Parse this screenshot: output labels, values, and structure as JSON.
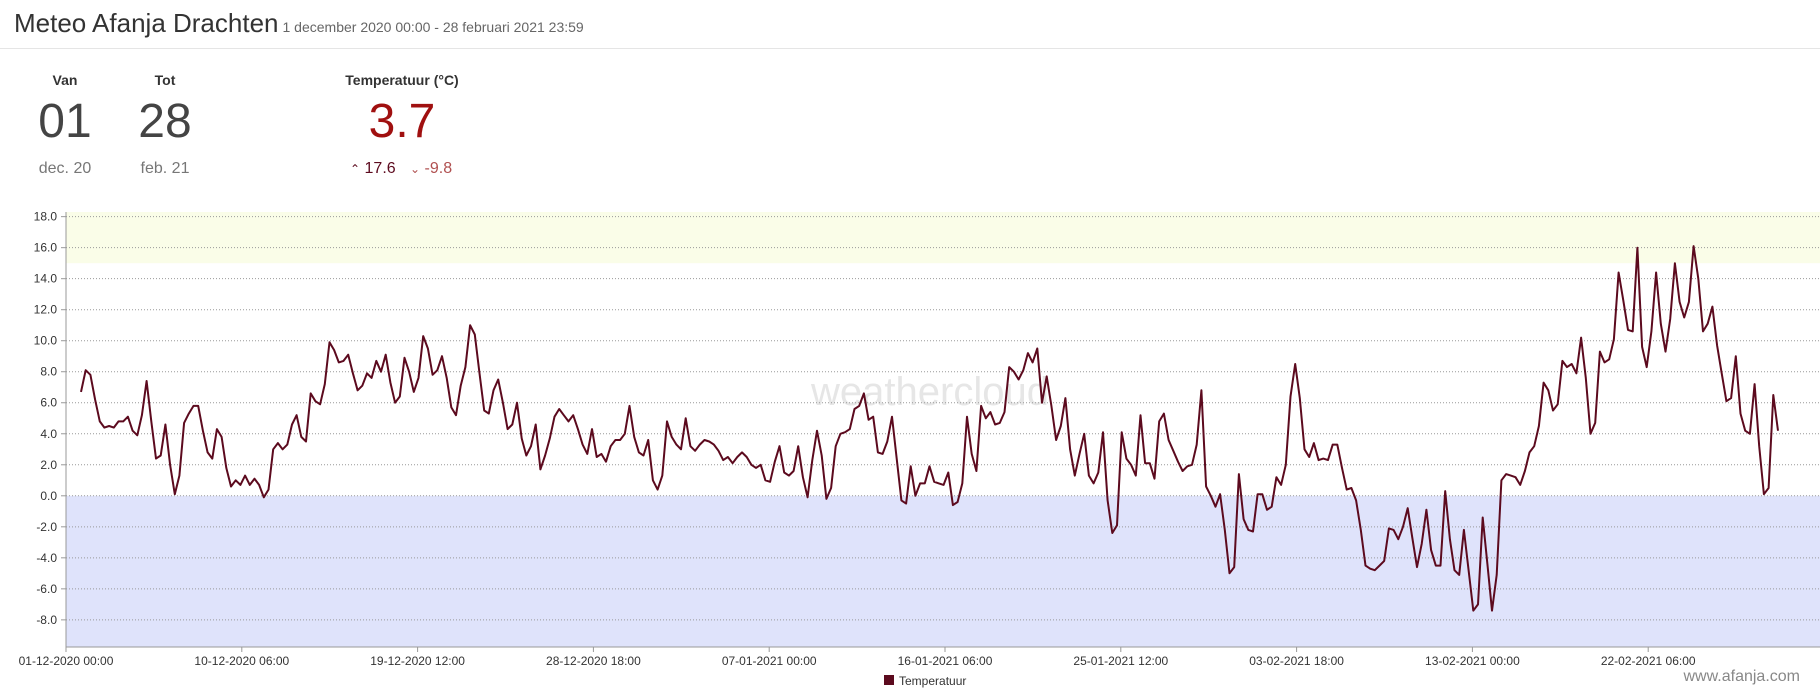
{
  "header": {
    "title": "Meteo Afanja Drachten",
    "subtitle": "1 december 2020 00:00 - 28 februari 2021 23:59"
  },
  "stats": {
    "from": {
      "label": "Van",
      "day": "01",
      "month": "dec. 20"
    },
    "to": {
      "label": "Tot",
      "day": "28",
      "month": "feb. 21"
    },
    "temperature": {
      "label": "Temperatuur (°C)",
      "average": 3.7,
      "max": 17.6,
      "min": -9.8
    }
  },
  "watermarks": [
    "weathercloud",
    "www.afanja.com"
  ],
  "chart_data": {
    "type": "line",
    "ylim": [
      -9.75,
      18.3
    ],
    "yticks": [
      {
        "value": -8,
        "label": "-8.0"
      },
      {
        "value": -6,
        "label": "-6.0"
      },
      {
        "value": -4,
        "label": "-4.0"
      },
      {
        "value": -2,
        "label": "-2.0"
      },
      {
        "value": 0,
        "label": "0.0"
      },
      {
        "value": 2,
        "label": "2.0"
      },
      {
        "value": 4,
        "label": "4.0"
      },
      {
        "value": 6,
        "label": "6.0"
      },
      {
        "value": 8,
        "label": "8.0"
      },
      {
        "value": 10,
        "label": "10.0"
      },
      {
        "value": 12,
        "label": "12.0"
      },
      {
        "value": 14,
        "label": "14.0"
      },
      {
        "value": 16,
        "label": "16.0"
      },
      {
        "value": 18,
        "label": "18.0"
      }
    ],
    "xticks": [
      "01-12-2020 00:00",
      "10-12-2020 06:00",
      "19-12-2020 12:00",
      "28-12-2020 18:00",
      "07-01-2021 00:00",
      "16-01-2021 06:00",
      "25-01-2021 12:00",
      "03-02-2021 18:00",
      "13-02-2021 00:00",
      "22-02-2021 06:00"
    ],
    "grid": true,
    "legend": "bottom",
    "bands": [
      {
        "from": 15,
        "to": 18.3,
        "color": "#fafde8"
      },
      {
        "from": -9.75,
        "to": 0,
        "color": "#dfe3fb"
      }
    ],
    "series": [
      {
        "name": "Temperatuur",
        "color": "#5c0a1e",
        "values": [
          6.7,
          8.1,
          7.8,
          6.2,
          4.8,
          4.4,
          4.5,
          4.4,
          4.8,
          4.8,
          5.1,
          4.2,
          3.9,
          5.2,
          7.4,
          4.8,
          2.4,
          2.6,
          4.6,
          2.0,
          0.1,
          1.3,
          4.7,
          5.3,
          5.8,
          5.8,
          4.2,
          2.8,
          2.4,
          4.3,
          3.8,
          1.8,
          0.6,
          1.0,
          0.7,
          1.3,
          0.7,
          1.1,
          0.7,
          -0.1,
          0.4,
          3.0,
          3.4,
          3.0,
          3.3,
          4.6,
          5.2,
          3.8,
          3.5,
          6.6,
          6.1,
          5.9,
          7.2,
          9.9,
          9.4,
          8.6,
          8.7,
          9.1,
          7.9,
          6.8,
          7.1,
          7.9,
          7.6,
          8.7,
          8.0,
          9.1,
          7.3,
          6.0,
          6.4,
          8.9,
          8.0,
          6.7,
          7.6,
          10.3,
          9.5,
          7.8,
          8.1,
          9.0,
          7.6,
          5.7,
          5.2,
          7.1,
          8.3,
          11.0,
          10.4,
          7.9,
          5.5,
          5.3,
          6.8,
          7.5,
          6.0,
          4.3,
          4.6,
          6.0,
          3.7,
          2.6,
          3.2,
          4.6,
          1.7,
          2.6,
          3.7,
          5.1,
          5.6,
          5.2,
          4.8,
          5.2,
          4.3,
          3.3,
          2.7,
          4.3,
          2.5,
          2.7,
          2.2,
          3.2,
          3.6,
          3.6,
          4.0,
          5.8,
          3.8,
          2.8,
          2.6,
          3.6,
          1.0,
          0.4,
          1.3,
          4.8,
          3.8,
          3.3,
          3.0,
          5.0,
          3.2,
          2.9,
          3.3,
          3.6,
          3.5,
          3.3,
          2.9,
          2.3,
          2.5,
          2.1,
          2.5,
          2.8,
          2.5,
          2.0,
          1.8,
          2.0,
          1.0,
          0.9,
          2.2,
          3.2,
          1.5,
          1.3,
          1.6,
          3.2,
          1.2,
          -0.1,
          2.3,
          4.2,
          2.6,
          -0.2,
          0.5,
          3.2,
          4.0,
          4.1,
          4.3,
          5.6,
          5.8,
          6.6,
          4.9,
          5.1,
          2.8,
          2.7,
          3.5,
          5.1,
          2.4,
          -0.3,
          -0.5,
          1.9,
          0.0,
          0.8,
          0.8,
          1.9,
          0.9,
          0.8,
          0.7,
          1.5,
          -0.6,
          -0.4,
          0.8,
          5.1,
          2.7,
          1.6,
          5.8,
          5.0,
          5.4,
          4.6,
          4.7,
          5.4,
          8.3,
          8.0,
          7.5,
          8.1,
          9.2,
          8.6,
          9.5,
          6.0,
          7.7,
          5.8,
          3.6,
          4.5,
          6.3,
          3.0,
          1.3,
          2.7,
          4.0,
          1.3,
          0.8,
          1.5,
          4.1,
          -0.3,
          -2.4,
          -1.9,
          4.1,
          2.4,
          2.0,
          1.3,
          5.2,
          2.1,
          2.1,
          1.1,
          4.8,
          5.3,
          3.6,
          2.9,
          2.2,
          1.6,
          1.9,
          2.0,
          3.3,
          6.8,
          0.6,
          0.0,
          -0.7,
          0.1,
          -2.2,
          -5.0,
          -4.6,
          1.4,
          -1.5,
          -2.2,
          -2.3,
          0.1,
          0.1,
          -0.9,
          -0.7,
          1.2,
          0.7,
          2.0,
          6.4,
          8.5,
          6.3,
          3.0,
          2.5,
          3.4,
          2.3,
          2.4,
          2.3,
          3.3,
          3.3,
          1.8,
          0.4,
          0.5,
          -0.3,
          -2.2,
          -4.5,
          -4.7,
          -4.8,
          -4.5,
          -4.2,
          -2.1,
          -2.2,
          -2.8,
          -2.0,
          -0.8,
          -2.7,
          -4.6,
          -3.1,
          -0.9,
          -3.5,
          -4.5,
          -4.5,
          0.3,
          -2.8,
          -4.8,
          -5.1,
          -2.2,
          -4.8,
          -7.4,
          -7.0,
          -1.4,
          -4.4,
          -7.4,
          -5.1,
          1.0,
          1.4,
          1.3,
          1.2,
          0.7,
          1.6,
          2.8,
          3.2,
          4.5,
          7.3,
          6.8,
          5.5,
          5.9,
          8.7,
          8.3,
          8.5,
          7.9,
          10.2,
          7.6,
          4.0,
          4.7,
          9.3,
          8.6,
          8.8,
          10.1,
          14.4,
          12.6,
          10.7,
          10.6,
          16.0,
          9.6,
          8.3,
          10.6,
          14.4,
          11.1,
          9.3,
          11.4,
          15.0,
          12.5,
          11.5,
          12.5,
          16.1,
          14.0,
          10.6,
          11.1,
          12.2,
          9.7,
          7.9,
          6.1,
          6.3,
          9.0,
          5.3,
          4.2,
          4.0,
          7.2,
          3.2,
          0.1,
          0.5,
          6.5,
          4.2
        ]
      }
    ]
  }
}
